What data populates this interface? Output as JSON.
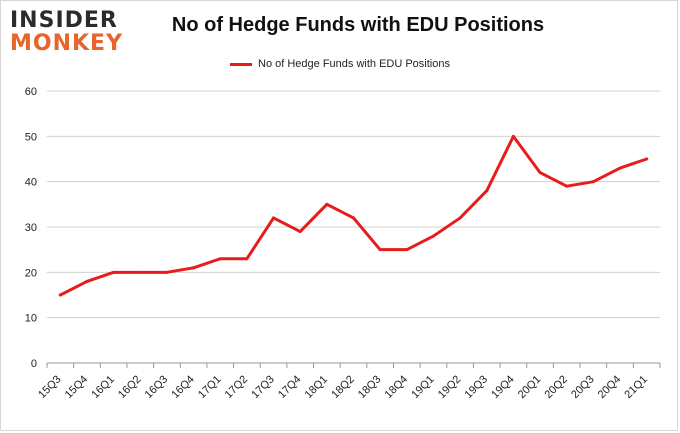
{
  "logo": {
    "line1": "INSIDER",
    "line2": "MONKEY"
  },
  "colors": {
    "line": "#e81c1c",
    "grid": "#d0d0d0",
    "axis_text": "#222222"
  },
  "chart_data": {
    "type": "line",
    "title": "No of Hedge Funds with EDU Positions",
    "xlabel": "",
    "ylabel": "",
    "ylim": [
      0,
      60
    ],
    "yticks": [
      0,
      10,
      20,
      30,
      40,
      50,
      60
    ],
    "grid": true,
    "legend_position": "top-center",
    "categories": [
      "15Q3",
      "15Q4",
      "16Q1",
      "16Q2",
      "16Q3",
      "16Q4",
      "17Q1",
      "17Q2",
      "17Q3",
      "17Q4",
      "18Q1",
      "18Q2",
      "18Q3",
      "18Q4",
      "19Q1",
      "19Q2",
      "19Q3",
      "19Q4",
      "20Q1",
      "20Q2",
      "20Q3",
      "20Q4",
      "21Q1"
    ],
    "series": [
      {
        "name": "No of Hedge Funds with EDU Positions",
        "values": [
          15,
          18,
          20,
          20,
          20,
          21,
          23,
          23,
          32,
          29,
          35,
          32,
          25,
          25,
          28,
          32,
          38,
          50,
          42,
          39,
          40,
          43,
          45
        ]
      }
    ]
  }
}
